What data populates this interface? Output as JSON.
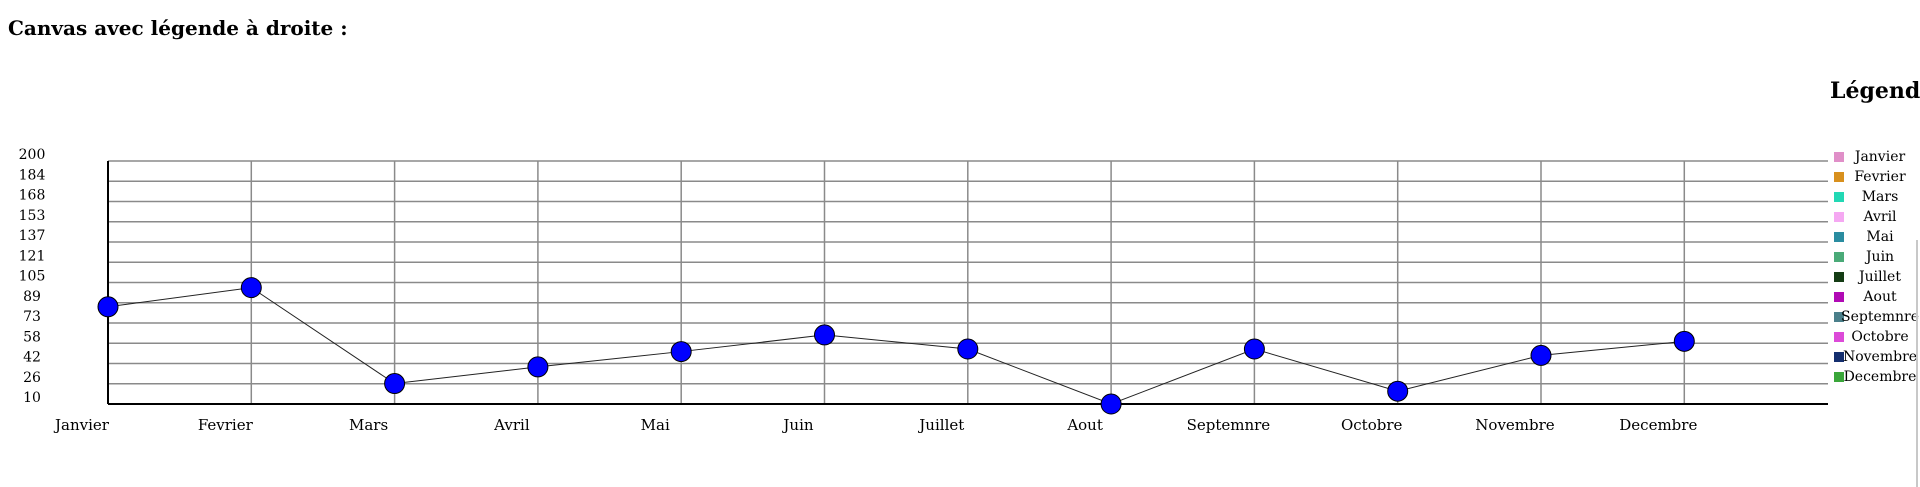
{
  "page": {
    "title": "Canvas avec légende à droite :"
  },
  "legend": {
    "title": "Légende"
  },
  "chart_data": {
    "type": "line",
    "categories": [
      "Janvier",
      "Fevrier",
      "Mars",
      "Avril",
      "Mai",
      "Juin",
      "Juillet",
      "Aout",
      "Septemnre",
      "Octobre",
      "Novembre",
      "Decembre"
    ],
    "values": [
      86,
      101,
      26,
      39,
      51,
      64,
      53,
      10,
      53,
      20,
      48,
      59
    ],
    "y_ticks": [
      "200",
      "184",
      "168",
      "153",
      "137",
      "121",
      "105",
      "89",
      "73",
      "58",
      "42",
      "26",
      "10"
    ],
    "ylim": [
      10,
      200
    ],
    "grid": true,
    "legend_position": "right",
    "marker_color": "#0000ff",
    "colors": [
      "#e08fc8",
      "#d8901e",
      "#22d8b4",
      "#f5a8f2",
      "#2a8ca0",
      "#4aaa78",
      "#143c14",
      "#b00ab4",
      "#4a7f8a",
      "#dc4ad8",
      "#142e6e",
      "#3aa63a"
    ]
  }
}
